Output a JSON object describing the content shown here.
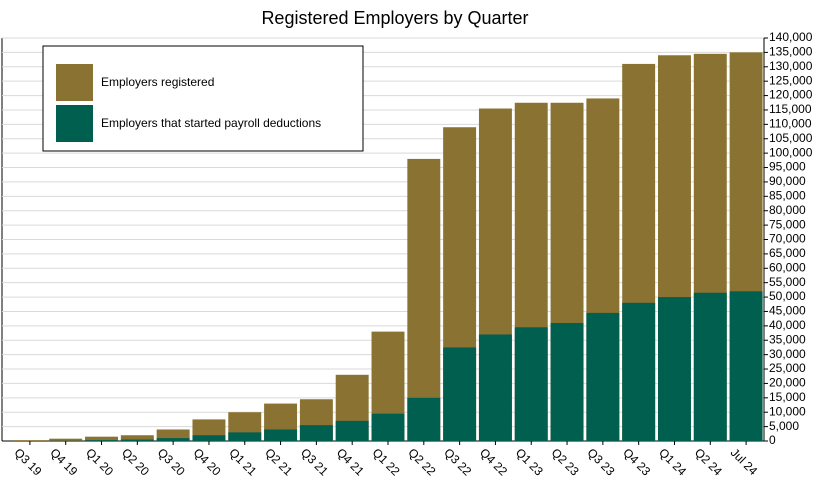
{
  "chart_data": {
    "type": "overlap-bar",
    "title": "Registered Employers by Quarter",
    "categories": [
      "Q3 19",
      "Q4 19",
      "Q1 20",
      "Q2 20",
      "Q3 20",
      "Q4 20",
      "Q1 21",
      "Q2 21",
      "Q3 21",
      "Q4 21",
      "Q1 22",
      "Q2 22",
      "Q3 22",
      "Q4 22",
      "Q1 23",
      "Q2 23",
      "Q3 23",
      "Q4 23",
      "Q1 24",
      "Q2 24",
      "Jul 24"
    ],
    "series": [
      {
        "name": "Employers registered",
        "color": "#8a7232",
        "values": [
          300,
          800,
          1500,
          2000,
          4000,
          7500,
          10000,
          13000,
          14500,
          23000,
          38000,
          98000,
          109000,
          115500,
          117500,
          117500,
          119000,
          131000,
          134000,
          134500,
          135000
        ]
      },
      {
        "name": "Employers that started payroll deductions",
        "color": "#005f4f",
        "values": [
          0,
          100,
          300,
          500,
          1000,
          2000,
          3000,
          4000,
          5500,
          7000,
          9500,
          15000,
          32500,
          37000,
          39500,
          41000,
          44500,
          48000,
          50000,
          51500,
          52000
        ]
      }
    ],
    "ylim": [
      0,
      140000
    ],
    "yticks": [
      0,
      {
        "value": 5000,
        "label": "5,000"
      },
      {
        "value": 10000,
        "label": "10,000"
      },
      {
        "value": 15000,
        "label": "15,000"
      },
      {
        "value": 20000,
        "label": "20,000"
      },
      {
        "value": 25000,
        "label": "25,000"
      },
      {
        "value": 30000,
        "label": "30,000"
      },
      {
        "value": 35000,
        "label": "35,000"
      },
      {
        "value": 40000,
        "label": "40,000"
      },
      {
        "value": 45000,
        "label": "45,000"
      },
      {
        "value": 50000,
        "label": "50,000"
      },
      {
        "value": 55000,
        "label": "55,000"
      },
      {
        "value": 60000,
        "label": "60,000"
      },
      {
        "value": 65000,
        "label": "65,000"
      },
      {
        "value": 70000,
        "label": "70,000"
      },
      {
        "value": 75000,
        "label": "75,000"
      },
      {
        "value": 80000,
        "label": "80,000"
      },
      {
        "value": 85000,
        "label": "85,000"
      },
      {
        "value": 90000,
        "label": "90,000"
      },
      {
        "value": 95000,
        "label": "95,000"
      },
      {
        "value": 100000,
        "label": "100,000"
      },
      {
        "value": 105000,
        "label": "105,000"
      },
      {
        "value": 110000,
        "label": "110,000"
      },
      {
        "value": 115000,
        "label": "115,000"
      },
      {
        "value": 120000,
        "label": "120,000"
      },
      {
        "value": 125000,
        "label": "125,000"
      },
      {
        "value": 130000,
        "label": "130,000"
      },
      {
        "value": 135000,
        "label": "135,000"
      },
      {
        "value": 140000,
        "label": "140,000"
      }
    ],
    "grid": true,
    "legend": "top-left"
  }
}
